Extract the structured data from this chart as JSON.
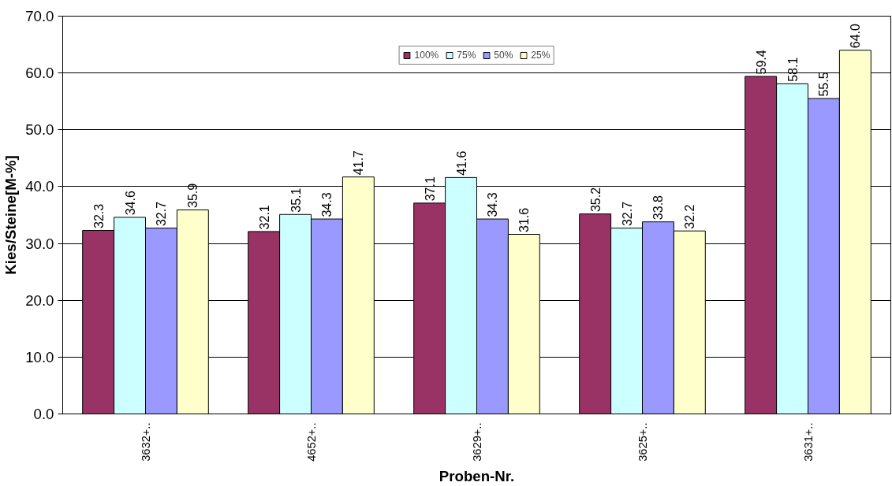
{
  "chart_data": {
    "type": "bar",
    "xlabel": "Proben-Nr.",
    "ylabel": "Kies/Steine[M-%]",
    "categories": [
      "3632+..",
      "4652+..",
      "3629+..",
      "3625+..",
      "3631+.."
    ],
    "series": [
      {
        "name": "100%",
        "color": "#993366",
        "values": [
          32.3,
          32.1,
          37.1,
          35.2,
          59.4
        ],
        "value_labels": [
          "32.3",
          "32.1",
          "37.1",
          "35.2",
          "59.4"
        ]
      },
      {
        "name": "75%",
        "color": "#ccffff",
        "values": [
          34.6,
          35.1,
          41.6,
          32.7,
          58.1
        ],
        "value_labels": [
          "34.6",
          "35.1",
          "41.6",
          "32.7",
          "58.1"
        ]
      },
      {
        "name": "50%",
        "color": "#9999ff",
        "values": [
          32.7,
          34.3,
          34.3,
          33.8,
          55.5
        ],
        "value_labels": [
          "32.7",
          "34.3",
          "34.3",
          "33.8",
          "55.5"
        ]
      },
      {
        "name": "25%",
        "color": "#ffffcc",
        "values": [
          35.9,
          41.7,
          31.6,
          32.2,
          64.0
        ],
        "value_labels": [
          "35.9",
          "41.7",
          "31.6",
          "32.2",
          "64.0"
        ]
      }
    ],
    "ylim": [
      0,
      70
    ],
    "yticks": [
      {
        "value": 0,
        "label": "0.0"
      },
      {
        "value": 10,
        "label": "10.0"
      },
      {
        "value": 20,
        "label": "20.0"
      },
      {
        "value": 30,
        "label": "30.0"
      },
      {
        "value": 40,
        "label": "40.0"
      },
      {
        "value": 50,
        "label": "50.0"
      },
      {
        "value": 60,
        "label": "60.0"
      },
      {
        "value": 70,
        "label": "70.0"
      }
    ],
    "grid": "y",
    "legend": "top"
  }
}
